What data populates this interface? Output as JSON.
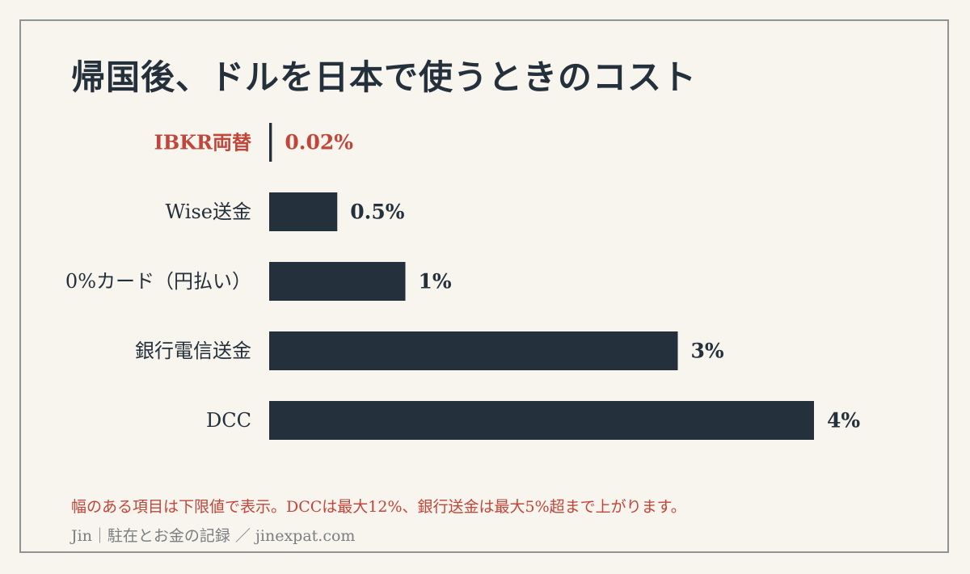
{
  "title": "帰国後、ドルを日本で使うときのコスト",
  "note": "幅のある項目は下限値で表示。DCCは最大12%、銀行送金は最大5%超まで上がります。",
  "credit": "Jin｜駐在とお金の記録 ／ jinexpat.com",
  "colors": {
    "background": "#f8f4ee",
    "bar": "#24303c",
    "highlight": "#c0463a",
    "text": "#24303c",
    "muted": "#7a7f83"
  },
  "chart_data": {
    "type": "bar",
    "orientation": "horizontal",
    "categories": [
      "IBKR両替",
      "Wise送金",
      "0%カード（円払い）",
      "銀行電信送金",
      "DCC"
    ],
    "values": [
      0.02,
      0.5,
      1,
      3,
      4
    ],
    "value_labels": [
      "0.02%",
      "0.5%",
      "1%",
      "3%",
      "4%"
    ],
    "highlight_index": 0,
    "xlim": [
      0,
      4
    ],
    "grid": false,
    "legend": "none"
  }
}
